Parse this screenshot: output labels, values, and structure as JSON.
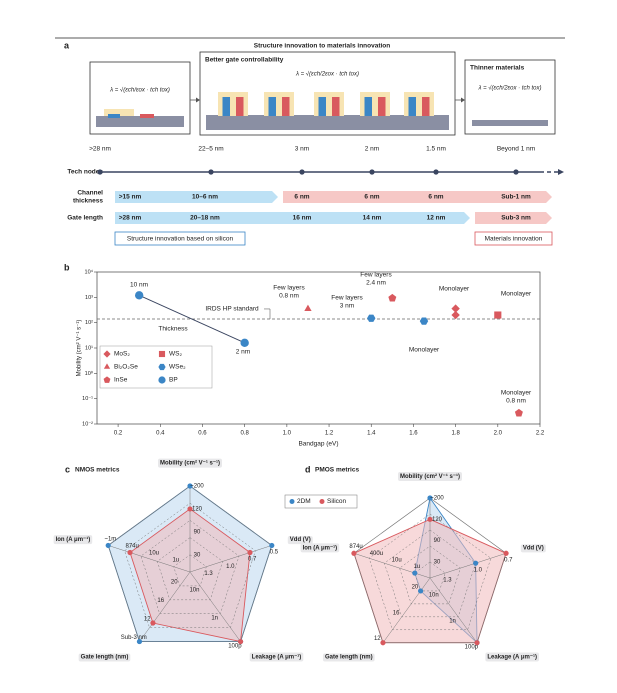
{
  "panel_a": {
    "label": "a",
    "title": "Structure innovation to materials innovation",
    "boxes": [
      {
        "formula": "λ = √(εch/εox · tch tox)"
      },
      {
        "title": "Better gate controllability",
        "formula": "λ = √(εch/2εox · tch tox)"
      },
      {
        "title": "Thinner materials",
        "formula": "λ = √(εch/2εox · tch tox)"
      }
    ],
    "rows": [
      {
        "label": [
          "Tech nodes"
        ],
        "items": [
          ">28 nm",
          "22–5 nm",
          "3 nm",
          "2 nm",
          "1.5 nm",
          "Beyond 1 nm"
        ]
      },
      {
        "label": [
          "Channel",
          "thickness"
        ],
        "items": [
          ">15 nm",
          "10–6 nm",
          "6 nm",
          "6 nm",
          "6 nm",
          "Sub-1 nm"
        ]
      },
      {
        "label": [
          "Gate length"
        ],
        "items": [
          ">28 nm",
          "20–18 nm",
          "16 nm",
          "14 nm",
          "12 nm",
          "Sub-3 nm"
        ]
      }
    ],
    "footers": [
      "Structure innovation based on silicon",
      "Materials innovation"
    ]
  },
  "chart_data": [
    {
      "type": "scatter",
      "label": "b",
      "xlabel": "Bandgap (eV)",
      "ylabel": "Mobility (cm² V⁻¹ s⁻¹)",
      "xlim": [
        0.1,
        2.2
      ],
      "xticks": [
        0.2,
        0.4,
        0.6,
        0.8,
        {
          "value": 1,
          "label": "1.0"
        },
        1.2,
        1.4,
        1.6,
        1.8,
        {
          "value": 2,
          "label": "2.0"
        },
        2.2
      ],
      "ylim": [
        0.01,
        10000
      ],
      "log_y": true,
      "yticks": [
        {
          "value": 0.01,
          "label": "10⁻²"
        },
        {
          "value": 0.1,
          "label": "10⁻¹"
        },
        {
          "value": 1,
          "label": "10⁰"
        },
        {
          "value": 10,
          "label": "10¹"
        },
        {
          "value": 100,
          "label": "10²"
        },
        {
          "value": 1000,
          "label": "10³"
        },
        {
          "value": 10000,
          "label": "10⁴"
        }
      ],
      "reference": {
        "label": "IRDS HP standard",
        "value": 140
      },
      "trend_label": "Thickness",
      "series": [
        {
          "name": "MoS₂",
          "color": "#d9595e",
          "marker": "diamond",
          "x": [
            1.8,
            1.8
          ],
          "values": [
            360,
            200
          ]
        },
        {
          "name": "WS₂",
          "color": "#d9595e",
          "marker": "square",
          "x": [
            2.0
          ],
          "values": [
            200
          ]
        },
        {
          "name": "Bi₂O₂Se",
          "color": "#d9595e",
          "marker": "triangle",
          "x": [
            1.1
          ],
          "values": [
            350
          ]
        },
        {
          "name": "WSe₂",
          "color": "#3b86c6",
          "marker": "hexagon",
          "x": [
            1.4,
            1.65
          ],
          "values": [
            150,
            115
          ]
        },
        {
          "name": "InSe",
          "color": "#d9595e",
          "marker": "pentagon",
          "x": [
            1.5,
            2.1
          ],
          "values": [
            930,
            0.027
          ]
        },
        {
          "name": "BP",
          "color": "#3b86c6",
          "marker": "circle",
          "x": [
            0.3,
            0.8
          ],
          "values": [
            1200,
            16
          ]
        }
      ],
      "annotations": [
        "10 nm",
        "2 nm",
        "Few layers",
        "0.8 nm",
        "Few layers",
        "2.4 nm",
        "Few layers",
        "3 nm",
        "Monolayer",
        "Monolayer",
        "Monolayer",
        "Monolayer",
        "0.8 nm"
      ]
    },
    {
      "type": "radar",
      "label": "c",
      "title": "NMOS metrics",
      "axes": [
        {
          "name": "Mobility (cm² V⁻¹ s⁻¹)",
          "ticks": [
            30,
            90,
            120,
            {
              "value": 200,
              "label": "~200"
            }
          ]
        },
        {
          "name": "Vdd (V)",
          "ticks": [
            1.3,
            {
              "value": 1,
              "label": "1.0"
            },
            0.7,
            0.5
          ]
        },
        {
          "name": "Leakage (A μm⁻¹)",
          "ticks": [
            {
              "value": 1e-08,
              "label": "10n"
            },
            {
              "value": 1e-09,
              "label": "1n"
            },
            {
              "value": 1e-10,
              "label": "100p"
            }
          ]
        },
        {
          "name": "Gate length (nm)",
          "ticks": [
            20,
            16,
            12,
            {
              "value": 3,
              "label": "Sub-3 nm"
            }
          ]
        },
        {
          "name": "Ion (A μm⁻¹)",
          "ticks": [
            {
              "value": 1e-06,
              "label": "1u"
            },
            {
              "value": 1e-05,
              "label": "10u"
            },
            {
              "value": 0.000874,
              "label": "874u"
            },
            {
              "value": 0.001,
              "label": "~1m"
            }
          ]
        }
      ],
      "series": [
        {
          "name": "2DM",
          "color": "#3b86c6",
          "fill": "#bcd7ee",
          "values": [
            200,
            0.5,
            1e-10,
            3,
            0.001
          ]
        },
        {
          "name": "Silicon",
          "color": "#d9595e",
          "fill": "#f0b9bb",
          "values": [
            120,
            0.7,
            1e-10,
            12,
            0.000874
          ]
        }
      ]
    },
    {
      "type": "radar",
      "label": "d",
      "title": "PMOS metrics",
      "axes": [
        {
          "name": "Mobility (cm² V⁻¹ s⁻¹)",
          "ticks": [
            30,
            90,
            120,
            {
              "value": 200,
              "label": "~200"
            }
          ]
        },
        {
          "name": "Vdd (V)",
          "ticks": [
            1.3,
            {
              "value": 1,
              "label": "1.0"
            },
            0.7
          ]
        },
        {
          "name": "Leakage (A μm⁻¹)",
          "ticks": [
            {
              "value": 1e-08,
              "label": "10n"
            },
            {
              "value": 1e-09,
              "label": "1n"
            },
            {
              "value": 1e-10,
              "label": "100p"
            }
          ]
        },
        {
          "name": "Gate length (nm)",
          "ticks": [
            20,
            16,
            12
          ]
        },
        {
          "name": "Ion (A μm⁻¹)",
          "ticks": [
            {
              "value": 1e-06,
              "label": "1u"
            },
            {
              "value": 1e-05,
              "label": "10u"
            },
            {
              "value": 0.0004,
              "label": "400u"
            },
            {
              "value": 0.000874,
              "label": "874u"
            }
          ]
        }
      ],
      "series": [
        {
          "name": "2DM",
          "color": "#3b86c6",
          "fill": "#bcd7ee",
          "values": [
            200,
            1,
            1e-10,
            20,
            1e-06
          ]
        },
        {
          "name": "Silicon",
          "color": "#d9595e",
          "fill": "#f0b9bb",
          "values": [
            120,
            0.7,
            1e-10,
            12,
            0.000874
          ]
        }
      ]
    }
  ]
}
